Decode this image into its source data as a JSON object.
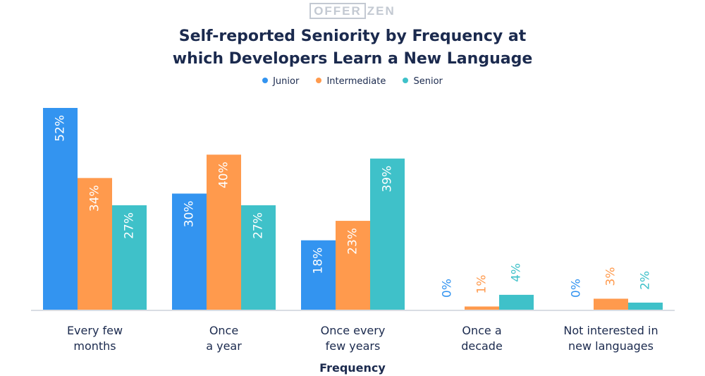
{
  "logo": {
    "boxed": "OFFER",
    "plain": "ZEN"
  },
  "chart_data": {
    "type": "bar",
    "title_line1": "Self-reported Seniority by Frequency at",
    "title_line2": "which Developers Learn a New Language",
    "xlabel": "Frequency",
    "ylabel": "",
    "ylim": [
      0,
      52
    ],
    "grid": false,
    "legend_position": "top-center",
    "categories": [
      [
        "Every few",
        "months"
      ],
      [
        "Once",
        "a year"
      ],
      [
        "Once every",
        "few years"
      ],
      [
        "Once a",
        "decade"
      ],
      [
        "Not interested in",
        "new languages"
      ]
    ],
    "series": [
      {
        "name": "Junior",
        "color": "#3394f0",
        "values": [
          52,
          30,
          18,
          0,
          0
        ],
        "labels": [
          "52%",
          "30%",
          "18%",
          "0%",
          "0%"
        ]
      },
      {
        "name": "Intermediate",
        "color": "#ff9a4d",
        "values": [
          34,
          40,
          23,
          1,
          3
        ],
        "labels": [
          "34%",
          "40%",
          "23%",
          "1%",
          "3%"
        ]
      },
      {
        "name": "Senior",
        "color": "#3fc1c9",
        "values": [
          27,
          27,
          39,
          4,
          2
        ],
        "labels": [
          "27%",
          "27%",
          "39%",
          "4%",
          "2%"
        ]
      }
    ]
  }
}
